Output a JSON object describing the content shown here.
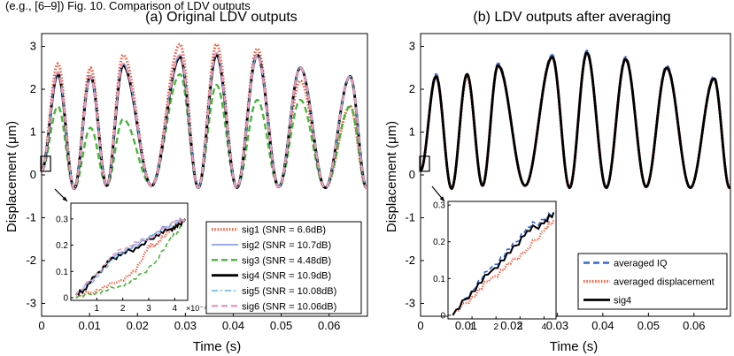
{
  "header_text": "(e.g., [6–9]) Fig. 10. Comparison of LDV outputs",
  "chart_data": [
    {
      "id": "a",
      "type": "line",
      "title": "(a) Original LDV outputs",
      "xlabel": "Time (s)",
      "ylabel": "Displacement (μm)",
      "xlim": [
        0,
        0.068
      ],
      "ylim": [
        -3.3,
        3.3
      ],
      "xticks": [
        "0",
        "0.01",
        "0.02",
        "0.03",
        "0.04",
        "0.05",
        "0.06"
      ],
      "yticks": [
        "-3",
        "-2",
        "-1",
        "0",
        "1",
        "2",
        "3"
      ],
      "legend_position": "bottom-right",
      "signal_model": {
        "base": 1.0,
        "amplitude_start": 1.3,
        "amplitude_growth": 0.3,
        "peak_times": [
          0.0034,
          0.0102,
          0.017,
          0.0289,
          0.0365,
          0.045,
          0.054,
          0.0644
        ],
        "peak_values": [
          2.35,
          2.3,
          2.55,
          2.75,
          2.8,
          2.8,
          2.5,
          2.3
        ],
        "trough_values": [
          -0.32,
          -0.25,
          -0.25,
          -0.3,
          -0.3,
          -0.28,
          -0.3,
          -0.3
        ]
      },
      "series": [
        {
          "name": "sig1 (SNR = 6.6dB)",
          "color": "#f05a3c",
          "style": "dotted",
          "peak_values": [
            2.6,
            2.5,
            2.8,
            3.05,
            3.05,
            2.95,
            2.2,
            1.6
          ]
        },
        {
          "name": "sig2 (SNR = 10.7dB)",
          "color": "#7b8fe0",
          "style": "solid",
          "peak_values": [
            2.4,
            2.3,
            2.6,
            2.8,
            2.85,
            2.8,
            2.5,
            2.3
          ]
        },
        {
          "name": "sig3 (SNR = 4.48dB)",
          "color": "#49b53b",
          "style": "dashed",
          "peak_values": [
            1.6,
            1.1,
            1.3,
            2.35,
            2.1,
            1.75,
            1.75,
            1.6
          ]
        },
        {
          "name": "sig4 (SNR = 10.9dB)",
          "color": "#000000",
          "style": "solid",
          "peak_values": [
            2.35,
            2.3,
            2.55,
            2.75,
            2.8,
            2.8,
            2.5,
            2.3
          ]
        },
        {
          "name": "sig5 (SNR = 10.08dB)",
          "color": "#5bb4e5",
          "style": "dashdot",
          "peak_values": [
            2.4,
            2.3,
            2.6,
            2.8,
            2.85,
            2.8,
            2.5,
            2.3
          ]
        },
        {
          "name": "sig6 (SNR = 10.06dB)",
          "color": "#e89ac0",
          "style": "dashed",
          "peak_values": [
            2.4,
            2.3,
            2.6,
            2.8,
            2.85,
            2.8,
            2.5,
            2.3
          ]
        }
      ],
      "inset": {
        "xlim": [
          0,
          0.00045
        ],
        "ylim": [
          -0.01,
          0.36
        ],
        "xticks": [
          "1",
          "2",
          "3",
          "4"
        ],
        "yticks": [
          "0",
          "0.1",
          "0.2",
          "0.3"
        ],
        "exponent_label": "×10⁻⁴",
        "series": [
          {
            "name": "sig1",
            "points": [
              [
                2e-05,
                0.0
              ],
              [
                0.0001,
                0.03
              ],
              [
                0.00018,
                0.06
              ],
              [
                0.00025,
                0.1
              ],
              [
                0.0003,
                0.2
              ],
              [
                0.00033,
                0.2
              ],
              [
                0.00037,
                0.25
              ],
              [
                0.00044,
                0.3
              ]
            ]
          },
          {
            "name": "sig2",
            "points": [
              [
                2e-05,
                0.01
              ],
              [
                0.0001,
                0.09
              ],
              [
                0.00018,
                0.17
              ],
              [
                0.00026,
                0.2
              ],
              [
                0.00033,
                0.25
              ],
              [
                0.0004,
                0.29
              ],
              [
                0.00044,
                0.3
              ]
            ]
          },
          {
            "name": "sig3",
            "points": [
              [
                2e-05,
                0.0
              ],
              [
                0.0001,
                0.02
              ],
              [
                0.00018,
                0.04
              ],
              [
                0.00025,
                0.07
              ],
              [
                0.00033,
                0.14
              ],
              [
                0.00038,
                0.22
              ],
              [
                0.00041,
                0.25
              ],
              [
                0.00044,
                0.3
              ]
            ]
          },
          {
            "name": "sig4",
            "points": [
              [
                2e-05,
                0.01
              ],
              [
                5e-05,
                0.03
              ],
              [
                0.0001,
                0.09
              ],
              [
                0.00015,
                0.14
              ],
              [
                0.0002,
                0.17
              ],
              [
                0.00026,
                0.19
              ],
              [
                0.00033,
                0.24
              ],
              [
                0.00038,
                0.26
              ],
              [
                0.00041,
                0.27
              ],
              [
                0.00044,
                0.3
              ]
            ]
          },
          {
            "name": "sig5",
            "points": [
              [
                2e-05,
                0.01
              ],
              [
                0.0001,
                0.08
              ],
              [
                0.00018,
                0.16
              ],
              [
                0.00026,
                0.21
              ],
              [
                0.00033,
                0.25
              ],
              [
                0.0004,
                0.28
              ],
              [
                0.00044,
                0.3
              ]
            ]
          },
          {
            "name": "sig6",
            "points": [
              [
                2e-05,
                0.01
              ],
              [
                0.0001,
                0.09
              ],
              [
                0.00018,
                0.18
              ],
              [
                0.00026,
                0.21
              ],
              [
                0.00033,
                0.24
              ],
              [
                0.0004,
                0.29
              ],
              [
                0.00044,
                0.3
              ]
            ]
          }
        ]
      }
    },
    {
      "id": "b",
      "type": "line",
      "title": "(b) LDV outputs after averaging",
      "xlabel": "Time (s)",
      "ylabel": "Displacement (μm)",
      "xlim": [
        0,
        0.068
      ],
      "ylim": [
        -3.3,
        3.3
      ],
      "xticks": [
        "0",
        "0.01",
        "0.02",
        "0.03",
        "0.04",
        "0.05",
        "0.06"
      ],
      "yticks": [
        "-3",
        "-2",
        "-1",
        "0",
        "1",
        "2",
        "3"
      ],
      "legend_position": "bottom-right",
      "series": [
        {
          "name": "averaged IQ",
          "color": "#3a66d0",
          "style": "dashed",
          "peak_values": [
            2.35,
            2.35,
            2.6,
            2.8,
            2.9,
            2.75,
            2.55,
            2.3
          ]
        },
        {
          "name": "averaged displacement",
          "color": "#f05a3c",
          "style": "dotted",
          "peak_values": [
            2.3,
            2.3,
            2.55,
            2.75,
            2.85,
            2.7,
            2.5,
            2.25
          ]
        },
        {
          "name": "sig4",
          "color": "#000000",
          "style": "solid",
          "peak_values": [
            2.3,
            2.35,
            2.55,
            2.75,
            2.85,
            2.7,
            2.5,
            2.25
          ]
        }
      ],
      "inset": {
        "xlim": [
          0,
          0.00045
        ],
        "ylim": [
          -0.01,
          0.31
        ],
        "xticks": [
          "1",
          "2",
          "3",
          "4"
        ],
        "yticks": [
          "0",
          "0.1",
          "0.2",
          "0.3"
        ],
        "series": [
          {
            "name": "averaged IQ",
            "points": [
              [
                2e-05,
                0.0
              ],
              [
                0.0001,
                0.07
              ],
              [
                0.00018,
                0.13
              ],
              [
                0.00026,
                0.18
              ],
              [
                0.00033,
                0.24
              ],
              [
                0.0004,
                0.26
              ],
              [
                0.00044,
                0.28
              ]
            ]
          },
          {
            "name": "averaged displacement",
            "points": [
              [
                2e-05,
                0.0
              ],
              [
                0.0001,
                0.05
              ],
              [
                0.00018,
                0.1
              ],
              [
                0.00026,
                0.14
              ],
              [
                0.00033,
                0.18
              ],
              [
                0.0004,
                0.23
              ],
              [
                0.00044,
                0.26
              ]
            ]
          },
          {
            "name": "sig4",
            "points": [
              [
                2e-05,
                0.0
              ],
              [
                0.0001,
                0.065
              ],
              [
                0.00018,
                0.12
              ],
              [
                0.00026,
                0.17
              ],
              [
                0.00033,
                0.23
              ],
              [
                0.0004,
                0.25
              ],
              [
                0.00044,
                0.28
              ]
            ]
          }
        ]
      }
    }
  ]
}
